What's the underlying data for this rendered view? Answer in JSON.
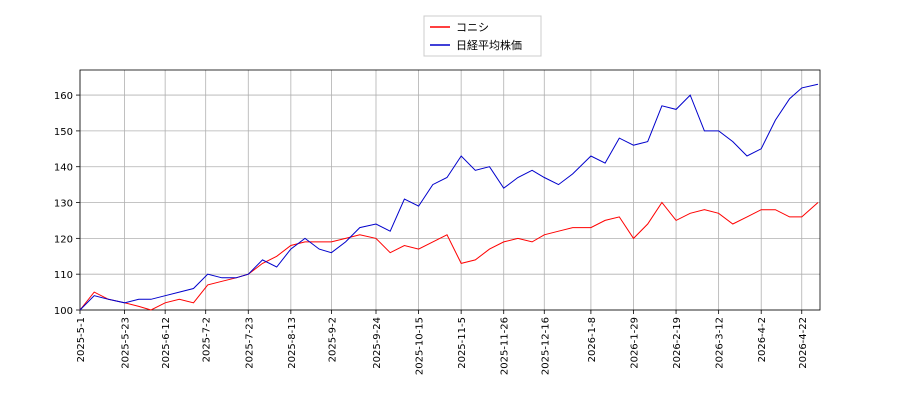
{
  "chart_data": {
    "type": "line",
    "x": [
      "2025-5-1",
      "2025-5-8",
      "2025-5-15",
      "2025-5-23",
      "2025-5-30",
      "2025-6-5",
      "2025-6-12",
      "2025-6-19",
      "2025-6-26",
      "2025-7-3",
      "2025-7-10",
      "2025-7-17",
      "2025-7-23",
      "2025-7-30",
      "2025-8-6",
      "2025-8-13",
      "2025-8-20",
      "2025-8-27",
      "2025-9-2",
      "2025-9-9",
      "2025-9-16",
      "2025-9-24",
      "2025-10-1",
      "2025-10-8",
      "2025-10-15",
      "2025-10-22",
      "2025-10-29",
      "2025-11-5",
      "2025-11-12",
      "2025-11-19",
      "2025-11-26",
      "2025-12-3",
      "2025-12-10",
      "2025-12-16",
      "2025-12-23",
      "2025-12-30",
      "2026-1-8",
      "2026-1-15",
      "2026-1-22",
      "2026-1-29",
      "2026-2-5",
      "2026-2-12",
      "2026-2-19",
      "2026-2-26",
      "2026-3-5",
      "2026-3-12",
      "2026-3-19",
      "2026-3-26",
      "2026-4-2",
      "2026-4-9",
      "2026-4-16",
      "2026-4-22",
      "2026-4-30"
    ],
    "series": [
      {
        "name": "コニシ",
        "color": "#ff0000",
        "values": [
          100,
          105,
          103,
          102,
          101,
          100,
          102,
          103,
          102,
          107,
          108,
          109,
          110,
          113,
          115,
          118,
          119,
          119,
          119,
          120,
          121,
          120,
          116,
          118,
          117,
          119,
          121,
          113,
          114,
          117,
          119,
          120,
          119,
          121,
          122,
          123,
          123,
          125,
          126,
          120,
          124,
          130,
          125,
          127,
          128,
          127,
          124,
          126,
          128,
          128,
          126,
          126,
          130
        ]
      },
      {
        "name": "日経平均株価",
        "color": "#0000cc",
        "values": [
          100,
          104,
          103,
          102,
          103,
          103,
          104,
          105,
          106,
          110,
          109,
          109,
          110,
          114,
          112,
          117,
          120,
          117,
          116,
          119,
          123,
          124,
          122,
          131,
          129,
          135,
          137,
          143,
          139,
          140,
          134,
          137,
          139,
          137,
          135,
          138,
          143,
          141,
          148,
          146,
          147,
          157,
          156,
          160,
          150,
          150,
          147,
          143,
          145,
          153,
          159,
          162,
          163
        ]
      }
    ],
    "xlim": [
      "2025-5-1",
      "2026-5-1"
    ],
    "xticks": [
      "2025-5-1",
      "2025-5-23",
      "2025-6-12",
      "2025-7-2",
      "2025-7-23",
      "2025-8-13",
      "2025-9-2",
      "2025-9-24",
      "2025-10-15",
      "2025-11-5",
      "2025-11-26",
      "2025-12-16",
      "2026-1-8",
      "2026-1-29",
      "2026-2-19",
      "2026-3-12",
      "2026-4-2",
      "2026-4-22"
    ],
    "ylim": [
      100,
      167
    ],
    "yticks": [
      100,
      110,
      120,
      130,
      140,
      150,
      160
    ],
    "grid": true,
    "legend": "top"
  }
}
